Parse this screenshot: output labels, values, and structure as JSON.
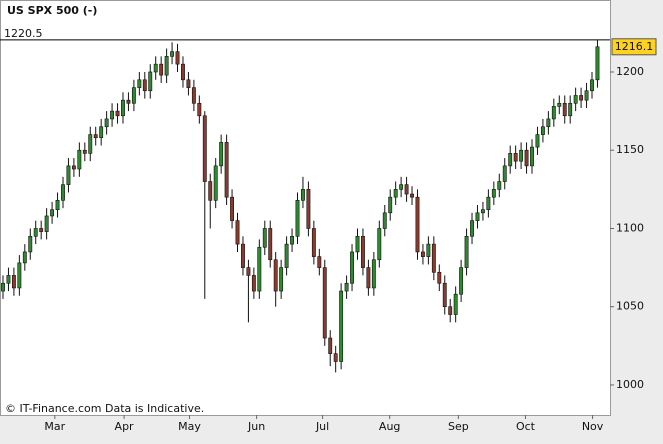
{
  "chart_data": {
    "type": "candlestick",
    "title": "US SPX 500 (-)",
    "footer": "© IT-Finance.com Data is Indicative.",
    "high_level": 1220.5,
    "last_price": 1216.1,
    "up_color": "#2f8a2f",
    "down_color": "#8b3a2e",
    "ylim": [
      980.8,
      1246
    ],
    "yticks": [
      1000,
      1050,
      1100,
      1150,
      1200
    ],
    "xlim": [
      -0.55,
      111.3
    ],
    "xticks": [
      {
        "value": 9.5,
        "label": "Mar"
      },
      {
        "value": 22.2,
        "label": "Apr"
      },
      {
        "value": 34.2,
        "label": "May"
      },
      {
        "value": 46.5,
        "label": "Jun"
      },
      {
        "value": 58.6,
        "label": "Jul"
      },
      {
        "value": 70.9,
        "label": "Aug"
      },
      {
        "value": 83.5,
        "label": "Sep"
      },
      {
        "value": 95.8,
        "label": "Oct"
      },
      {
        "value": 108.1,
        "label": "Nov"
      }
    ],
    "open": [
      1060,
      1065,
      1070,
      1062,
      1078,
      1085,
      1095,
      1100,
      1098,
      1108,
      1112,
      1118,
      1128,
      1140,
      1138,
      1150,
      1148,
      1160,
      1158,
      1165,
      1170,
      1175,
      1172,
      1182,
      1180,
      1190,
      1195,
      1188,
      1200,
      1205,
      1198,
      1210,
      1213,
      1205,
      1195,
      1190,
      1180,
      1172,
      1130,
      1118,
      1140,
      1155,
      1120,
      1105,
      1090,
      1075,
      1070,
      1060,
      1088,
      1100,
      1080,
      1060,
      1075,
      1090,
      1095,
      1118,
      1125,
      1100,
      1082,
      1075,
      1030,
      1020,
      1015,
      1060,
      1065,
      1085,
      1095,
      1075,
      1062,
      1080,
      1100,
      1110,
      1120,
      1125,
      1128,
      1122,
      1120,
      1085,
      1082,
      1090,
      1072,
      1065,
      1050,
      1045,
      1058,
      1075,
      1095,
      1105,
      1110,
      1112,
      1120,
      1125,
      1130,
      1140,
      1148,
      1143,
      1150,
      1140,
      1152,
      1160,
      1165,
      1170,
      1178,
      1180,
      1172,
      1180,
      1185,
      1182,
      1188,
      1195
    ],
    "high": [
      1070,
      1075,
      1075,
      1083,
      1090,
      1100,
      1105,
      1105,
      1113,
      1117,
      1123,
      1133,
      1145,
      1145,
      1155,
      1155,
      1165,
      1165,
      1170,
      1175,
      1180,
      1180,
      1187,
      1187,
      1195,
      1200,
      1200,
      1205,
      1210,
      1210,
      1215,
      1219,
      1218,
      1210,
      1200,
      1195,
      1185,
      1175,
      1135,
      1145,
      1160,
      1160,
      1125,
      1110,
      1095,
      1080,
      1075,
      1093,
      1105,
      1105,
      1085,
      1080,
      1095,
      1100,
      1123,
      1133,
      1130,
      1105,
      1087,
      1080,
      1035,
      1025,
      1065,
      1070,
      1090,
      1100,
      1100,
      1080,
      1085,
      1105,
      1115,
      1125,
      1130,
      1133,
      1133,
      1127,
      1125,
      1090,
      1095,
      1095,
      1077,
      1070,
      1055,
      1063,
      1080,
      1100,
      1110,
      1115,
      1117,
      1125,
      1130,
      1135,
      1145,
      1153,
      1153,
      1155,
      1155,
      1157,
      1165,
      1170,
      1175,
      1183,
      1185,
      1185,
      1185,
      1190,
      1190,
      1193,
      1200,
      1220.5
    ],
    "low": [
      1055,
      1060,
      1057,
      1057,
      1073,
      1080,
      1090,
      1093,
      1093,
      1103,
      1107,
      1113,
      1123,
      1133,
      1133,
      1143,
      1143,
      1153,
      1153,
      1160,
      1165,
      1167,
      1167,
      1175,
      1175,
      1185,
      1183,
      1183,
      1195,
      1193,
      1193,
      1205,
      1200,
      1190,
      1185,
      1175,
      1167,
      1055,
      1100,
      1113,
      1135,
      1115,
      1100,
      1085,
      1070,
      1040,
      1055,
      1055,
      1083,
      1075,
      1050,
      1055,
      1070,
      1085,
      1090,
      1113,
      1095,
      1077,
      1070,
      1025,
      1012,
      1008,
      1010,
      1055,
      1060,
      1080,
      1070,
      1057,
      1057,
      1075,
      1095,
      1105,
      1115,
      1120,
      1117,
      1115,
      1080,
      1077,
      1077,
      1067,
      1060,
      1045,
      1040,
      1040,
      1053,
      1070,
      1090,
      1100,
      1105,
      1107,
      1115,
      1120,
      1125,
      1135,
      1138,
      1138,
      1135,
      1135,
      1147,
      1155,
      1160,
      1165,
      1173,
      1167,
      1167,
      1175,
      1177,
      1177,
      1183,
      1190
    ],
    "close": [
      1065,
      1070,
      1062,
      1078,
      1085,
      1095,
      1100,
      1098,
      1108,
      1112,
      1118,
      1128,
      1140,
      1138,
      1150,
      1148,
      1160,
      1158,
      1165,
      1170,
      1175,
      1172,
      1182,
      1180,
      1190,
      1195,
      1188,
      1200,
      1205,
      1198,
      1210,
      1213,
      1205,
      1195,
      1190,
      1180,
      1172,
      1130,
      1118,
      1140,
      1155,
      1120,
      1105,
      1090,
      1075,
      1070,
      1060,
      1088,
      1100,
      1080,
      1060,
      1075,
      1090,
      1095,
      1118,
      1125,
      1100,
      1082,
      1075,
      1030,
      1020,
      1015,
      1060,
      1065,
      1085,
      1095,
      1075,
      1062,
      1080,
      1100,
      1110,
      1120,
      1125,
      1128,
      1122,
      1120,
      1085,
      1082,
      1090,
      1072,
      1065,
      1050,
      1045,
      1058,
      1075,
      1095,
      1105,
      1110,
      1112,
      1120,
      1125,
      1130,
      1140,
      1148,
      1143,
      1150,
      1140,
      1152,
      1160,
      1165,
      1170,
      1178,
      1180,
      1172,
      1180,
      1185,
      1182,
      1188,
      1195,
      1216.1
    ]
  }
}
